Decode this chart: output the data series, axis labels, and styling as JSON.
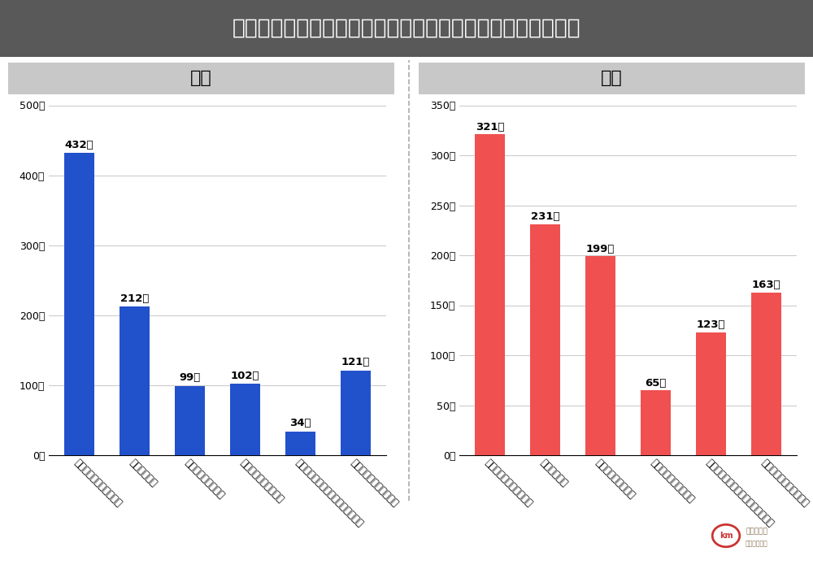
{
  "title": "既婚者マッチングアプリを利用なら不安材料はなんですか？",
  "title_bg_color": "#595959",
  "title_text_color": "#ffffff",
  "male_label": "男性",
  "female_label": "女性",
  "section_bg_color": "#c8c8c8",
  "categories": [
    "パートナーにバレないか",
    "詐欺被害など",
    "マッチングするのか",
    "サクラユーザーの割合",
    "不倫にならないための対策が欲しい",
    "カードの明細に残ること"
  ],
  "male_values": [
    432,
    212,
    99,
    102,
    34,
    121
  ],
  "female_values": [
    321,
    231,
    199,
    65,
    123,
    163
  ],
  "male_color": "#2251cc",
  "female_color": "#f05050",
  "male_ylim": [
    0,
    500
  ],
  "female_ylim": [
    0,
    350
  ],
  "male_yticks": [
    0,
    100,
    200,
    300,
    400,
    500
  ],
  "female_yticks": [
    0,
    50,
    100,
    150,
    200,
    250,
    300,
    350
  ],
  "bg_color": "#ffffff",
  "grid_color": "#cccccc",
  "separator_color": "#aaaaaa"
}
